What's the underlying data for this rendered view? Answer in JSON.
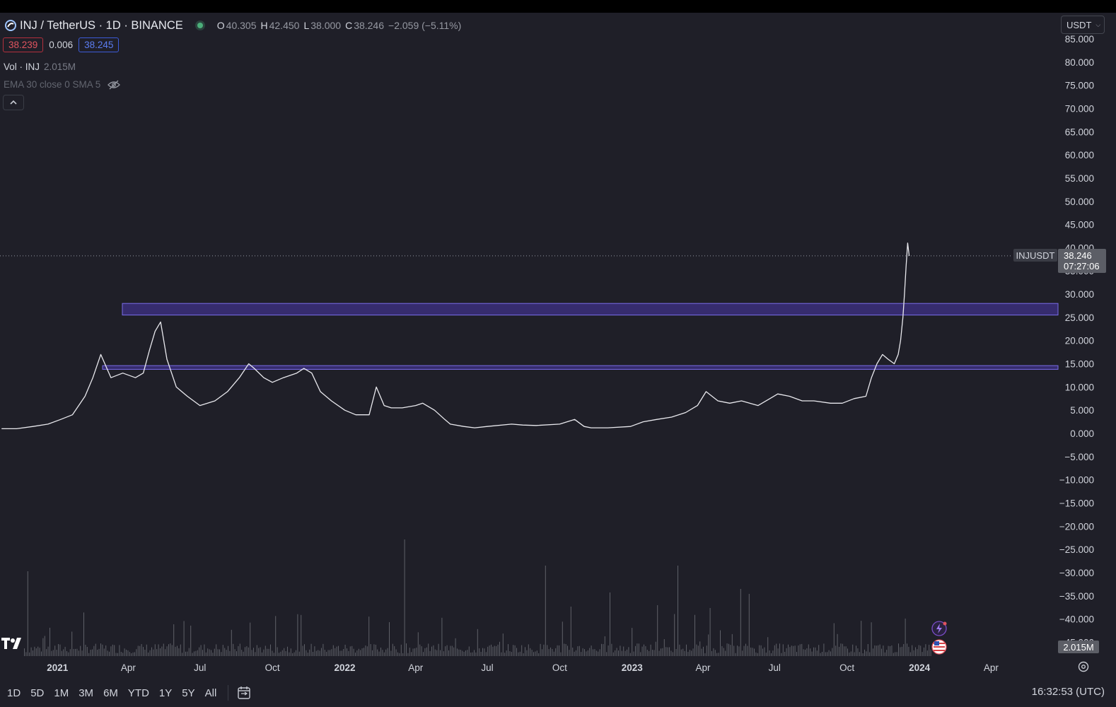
{
  "header": {
    "title": "INJ / TetherUS · 1D · BINANCE",
    "ohlc": [
      {
        "key": "O",
        "value": "40.305"
      },
      {
        "key": "H",
        "value": "42.450"
      },
      {
        "key": "L",
        "value": "38.000"
      },
      {
        "key": "C",
        "value": "38.246"
      }
    ],
    "change": "−2.059 (−5.11%)"
  },
  "quote": {
    "bid": "38.239",
    "spread": "0.006",
    "ask": "38.245"
  },
  "indicators": {
    "vol_name": "Vol · INJ",
    "vol_value": "2.015M",
    "ema_label": "EMA 30 close 0 SMA 5"
  },
  "currency_select": {
    "value": "USDT"
  },
  "price_label": {
    "symbol": "INJUSDT",
    "price": "38.246",
    "countdown": "07:27:06"
  },
  "volume_label": "2.015M",
  "bottom": {
    "ranges": [
      "1D",
      "5D",
      "1M",
      "3M",
      "6M",
      "YTD",
      "1Y",
      "5Y",
      "All"
    ],
    "clock": "16:32:53 (UTC)"
  },
  "colors": {
    "background": "#1f1f28",
    "price_line": "#e9e9ee",
    "zone_fill": "#3b2f7a",
    "zone_border": "#7a6ce8",
    "volume": "#6a6c73",
    "bid": "#e0545f",
    "ask": "#5b7cf0"
  },
  "chart_data": {
    "type": "line",
    "title": "INJ / TetherUS · 1D · BINANCE",
    "xlabel": "",
    "ylabel": "",
    "y_tick_labels": [
      "85.000",
      "80.000",
      "75.000",
      "70.000",
      "65.000",
      "60.000",
      "55.000",
      "50.000",
      "45.000",
      "40.000",
      "35.000",
      "30.000",
      "25.000",
      "20.000",
      "15.000",
      "10.000",
      "5.000",
      "0.000",
      "−5.000",
      "−10.000",
      "−15.000",
      "−20.000",
      "−25.000",
      "−30.000",
      "−35.000",
      "−40.000",
      "−45.000"
    ],
    "ylim": [
      -47,
      86
    ],
    "x_tick_labels": [
      "2021",
      "Apr",
      "Jul",
      "Oct",
      "2022",
      "Apr",
      "Jul",
      "Oct",
      "2023",
      "Apr",
      "Jul",
      "Oct",
      "2024",
      "Apr"
    ],
    "x_tick_dates": [
      "2021-01-01",
      "2021-04-01",
      "2021-07-01",
      "2021-10-01",
      "2022-01-01",
      "2022-04-01",
      "2022-07-01",
      "2022-10-01",
      "2023-01-01",
      "2023-04-01",
      "2023-07-01",
      "2023-10-01",
      "2024-01-01",
      "2024-04-01"
    ],
    "xlim": [
      "2020-10-20",
      "2024-06-25"
    ],
    "grid": false,
    "series": [
      {
        "x": [
          "2020-10-22",
          "2020-11-10",
          "2020-12-01",
          "2020-12-20",
          "2021-01-05",
          "2021-01-20",
          "2021-02-05",
          "2021-02-15",
          "2021-02-25",
          "2021-03-10",
          "2021-03-25",
          "2021-04-10",
          "2021-04-20",
          "2021-04-28",
          "2021-05-05",
          "2021-05-12",
          "2021-05-20",
          "2021-06-01",
          "2021-06-15",
          "2021-07-01",
          "2021-07-20",
          "2021-08-05",
          "2021-08-20",
          "2021-09-01",
          "2021-09-08",
          "2021-09-20",
          "2021-10-01",
          "2021-10-15",
          "2021-11-01",
          "2021-11-10",
          "2021-11-20",
          "2021-12-01",
          "2021-12-15",
          "2022-01-01",
          "2022-01-15",
          "2022-02-01",
          "2022-02-10",
          "2022-02-20",
          "2022-03-01",
          "2022-03-15",
          "2022-04-01",
          "2022-04-10",
          "2022-04-25",
          "2022-05-08",
          "2022-05-15",
          "2022-06-01",
          "2022-06-15",
          "2022-07-01",
          "2022-08-01",
          "2022-08-15",
          "2022-09-01",
          "2022-10-01",
          "2022-10-20",
          "2022-11-01",
          "2022-11-10",
          "2022-12-01",
          "2022-12-30",
          "2023-01-15",
          "2023-02-01",
          "2023-02-20",
          "2023-03-10",
          "2023-03-25",
          "2023-04-05",
          "2023-04-20",
          "2023-05-05",
          "2023-05-20",
          "2023-06-10",
          "2023-06-25",
          "2023-07-05",
          "2023-07-20",
          "2023-08-05",
          "2023-08-20",
          "2023-09-10",
          "2023-09-25",
          "2023-10-10",
          "2023-10-25",
          "2023-11-01",
          "2023-11-08",
          "2023-11-15",
          "2023-11-22",
          "2023-11-30",
          "2023-12-05",
          "2023-12-08",
          "2023-12-11",
          "2023-12-13",
          "2023-12-15",
          "2023-12-17",
          "2023-12-19"
        ],
        "y": [
          1.0,
          1.0,
          1.5,
          2.0,
          3.0,
          4.0,
          8.0,
          12.0,
          17.0,
          12.0,
          13.0,
          12.0,
          13.0,
          18.0,
          22.0,
          24.0,
          16.0,
          10.0,
          8.0,
          6.0,
          7.0,
          9.0,
          12.0,
          15.0,
          14.0,
          12.0,
          11.0,
          12.0,
          13.0,
          14.0,
          13.0,
          9.0,
          7.0,
          5.0,
          4.0,
          4.0,
          10.0,
          6.0,
          5.5,
          5.5,
          6.0,
          6.5,
          5.0,
          3.0,
          2.0,
          1.5,
          1.2,
          1.5,
          2.0,
          1.8,
          1.7,
          2.0,
          3.0,
          1.5,
          1.2,
          1.2,
          1.5,
          2.5,
          3.0,
          3.5,
          4.5,
          6.0,
          9.0,
          7.0,
          6.5,
          7.0,
          6.0,
          7.5,
          8.5,
          8.0,
          7.0,
          7.0,
          6.5,
          6.5,
          7.5,
          8.0,
          12.0,
          15.0,
          17.0,
          16.0,
          15.0,
          17.0,
          20.0,
          25.0,
          30.0,
          36.0,
          41.0,
          38.246
        ]
      }
    ],
    "zones": [
      {
        "from": 25.5,
        "to": 28.0
      },
      {
        "from": 13.8,
        "to": 14.6
      }
    ],
    "last_price": 38.246,
    "volume_last": "2.015M"
  }
}
